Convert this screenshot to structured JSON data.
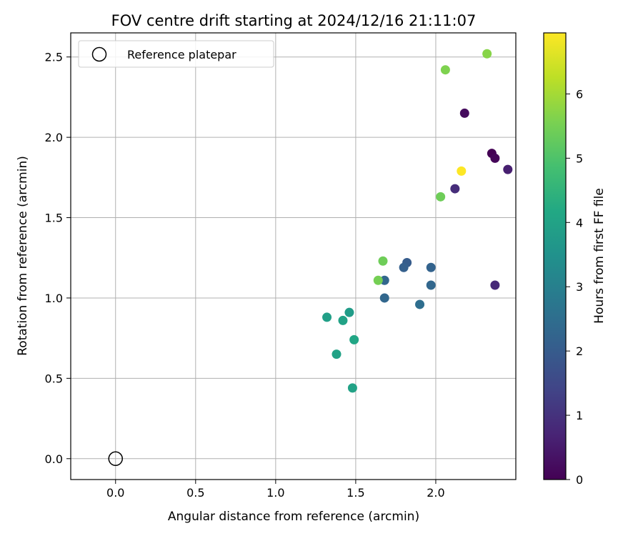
{
  "chart_data": {
    "type": "scatter",
    "title": "FOV centre drift starting at 2024/12/16 21:11:07",
    "xlabel": "Angular distance from reference (arcmin)",
    "ylabel": "Rotation from reference (arcmin)",
    "xlim": [
      -0.28,
      2.5
    ],
    "ylim": [
      -0.13,
      2.65
    ],
    "xticks": [
      0.0,
      0.5,
      1.0,
      1.5,
      2.0
    ],
    "xtick_labels": [
      "0.0",
      "0.5",
      "1.0",
      "1.5",
      "2.0"
    ],
    "yticks": [
      0.0,
      0.5,
      1.0,
      1.5,
      2.0,
      2.5
    ],
    "ytick_labels": [
      "0.0",
      "0.5",
      "1.0",
      "1.5",
      "2.0",
      "2.5"
    ],
    "grid": true,
    "colormap": "viridis",
    "colorbar": {
      "label": "Hours from first FF file",
      "range": [
        0,
        6.95
      ],
      "ticks": [
        0,
        1,
        2,
        3,
        4,
        5,
        6
      ],
      "tick_labels": [
        "0",
        "1",
        "2",
        "3",
        "4",
        "5",
        "6"
      ]
    },
    "legend": {
      "placement": "top-left",
      "entries": [
        "Reference platepar"
      ]
    },
    "reference_point": {
      "x": 0.0,
      "y": 0.0
    },
    "points": [
      {
        "x": 2.35,
        "y": 1.9,
        "hours": 0.0
      },
      {
        "x": 2.37,
        "y": 1.87,
        "hours": 0.1
      },
      {
        "x": 2.18,
        "y": 2.15,
        "hours": 0.2
      },
      {
        "x": 2.45,
        "y": 1.8,
        "hours": 0.6
      },
      {
        "x": 2.37,
        "y": 1.08,
        "hours": 0.8
      },
      {
        "x": 2.12,
        "y": 1.68,
        "hours": 0.9
      },
      {
        "x": 1.82,
        "y": 1.22,
        "hours": 2.0
      },
      {
        "x": 1.8,
        "y": 1.19,
        "hours": 2.1
      },
      {
        "x": 1.97,
        "y": 1.19,
        "hours": 2.2
      },
      {
        "x": 1.68,
        "y": 1.11,
        "hours": 2.3
      },
      {
        "x": 1.97,
        "y": 1.08,
        "hours": 2.3
      },
      {
        "x": 1.68,
        "y": 1.0,
        "hours": 2.3
      },
      {
        "x": 1.9,
        "y": 0.96,
        "hours": 2.5
      },
      {
        "x": 1.46,
        "y": 0.91,
        "hours": 3.8
      },
      {
        "x": 1.32,
        "y": 0.88,
        "hours": 3.9
      },
      {
        "x": 1.42,
        "y": 0.86,
        "hours": 4.0
      },
      {
        "x": 1.49,
        "y": 0.74,
        "hours": 4.1
      },
      {
        "x": 1.38,
        "y": 0.65,
        "hours": 4.0
      },
      {
        "x": 1.48,
        "y": 0.44,
        "hours": 4.0
      },
      {
        "x": 2.03,
        "y": 1.63,
        "hours": 5.4
      },
      {
        "x": 1.64,
        "y": 1.11,
        "hours": 5.5
      },
      {
        "x": 1.67,
        "y": 1.23,
        "hours": 5.4
      },
      {
        "x": 2.06,
        "y": 2.42,
        "hours": 5.6
      },
      {
        "x": 2.32,
        "y": 2.52,
        "hours": 5.7
      },
      {
        "x": 2.16,
        "y": 1.79,
        "hours": 6.95
      }
    ]
  }
}
